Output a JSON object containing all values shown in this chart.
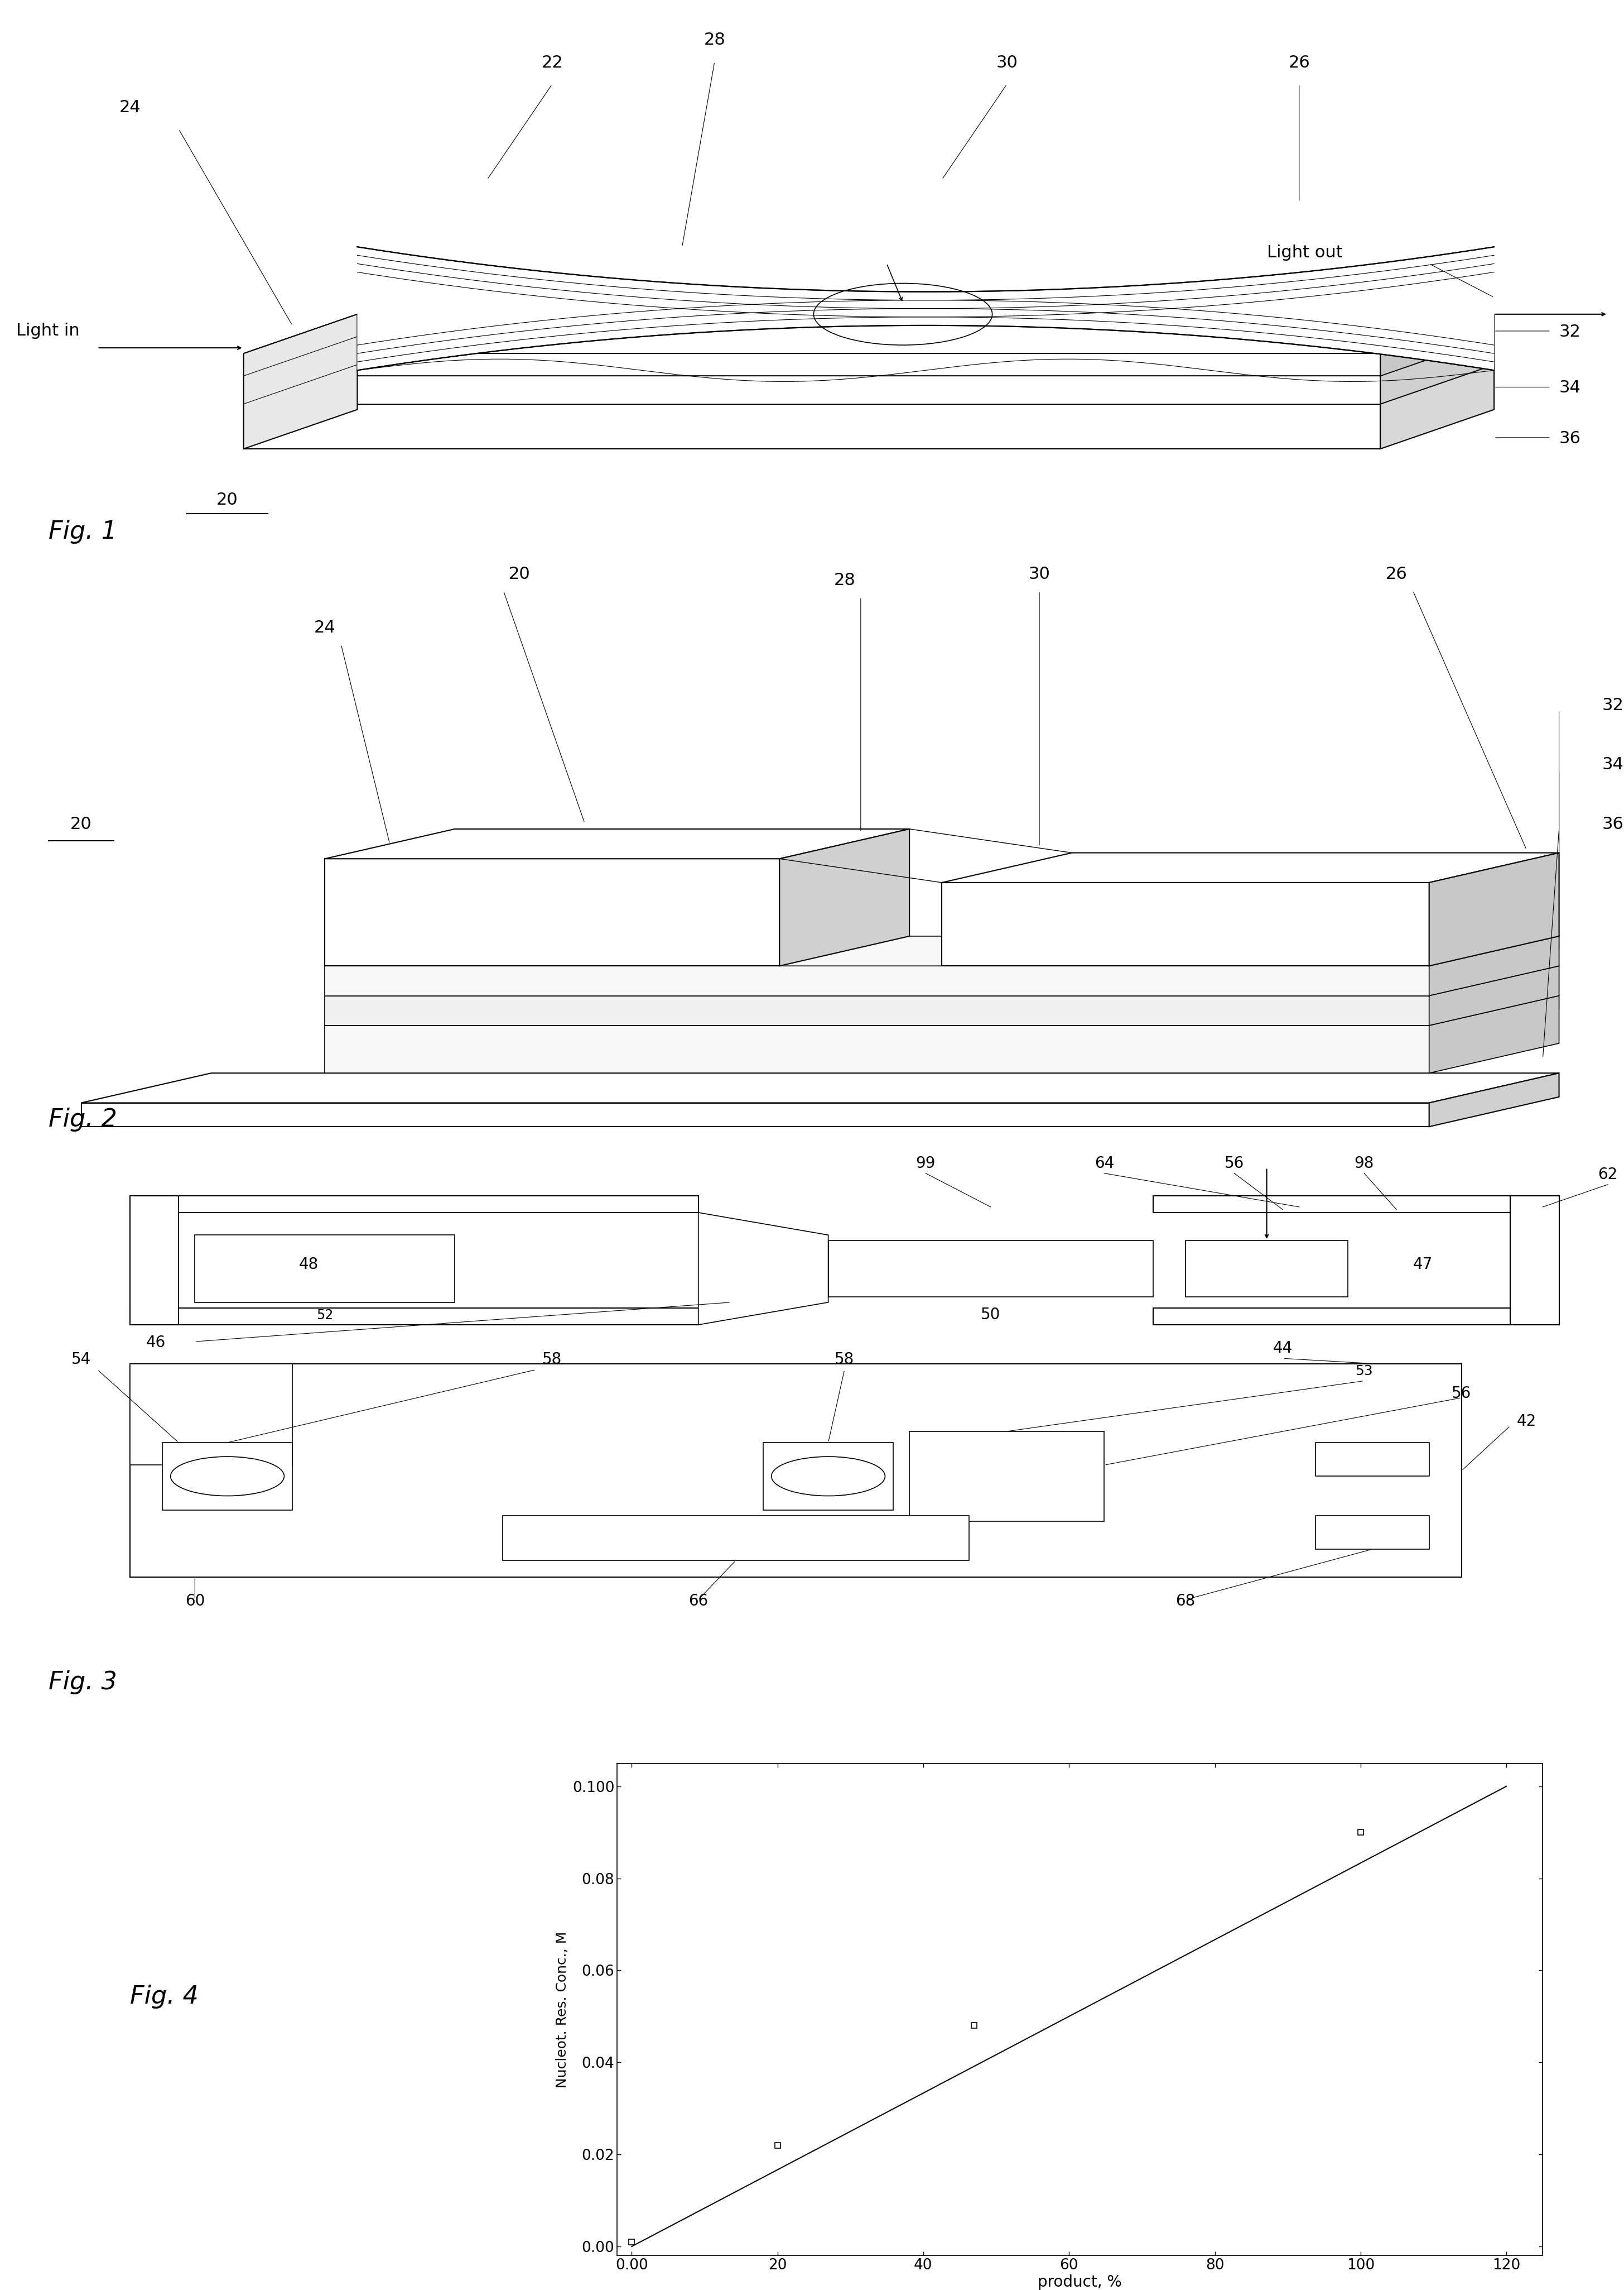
{
  "fig4": {
    "x_data": [
      0.0,
      20,
      47,
      100
    ],
    "y_data": [
      0.001,
      0.022,
      0.048,
      0.09
    ],
    "line_x": [
      0.0,
      120
    ],
    "line_y": [
      0.0,
      0.1
    ],
    "xlabel": "product, %",
    "ylabel": "Nucleot. Res. Conc., M",
    "x_ticks": [
      0.0,
      20,
      40,
      60,
      80,
      100,
      120
    ],
    "x_tick_labels": [
      "0.00",
      "20",
      "40",
      "60",
      "80",
      "100",
      "120"
    ],
    "y_ticks": [
      0.0,
      0.02,
      0.04,
      0.06,
      0.08,
      0.1
    ],
    "y_tick_labels": [
      "0.00",
      "0.02",
      "0.04",
      "0.06",
      "0.08",
      "0.100"
    ],
    "xlim": [
      -2,
      125
    ],
    "ylim": [
      -0.002,
      0.105
    ],
    "marker": "s",
    "markersize": 7,
    "linewidth": 1.5,
    "color": "black"
  },
  "fig_label_fontsize": 32,
  "annotation_fontsize": 22,
  "axis_label_fontsize": 20,
  "tick_fontsize": 19,
  "background": "#ffffff"
}
